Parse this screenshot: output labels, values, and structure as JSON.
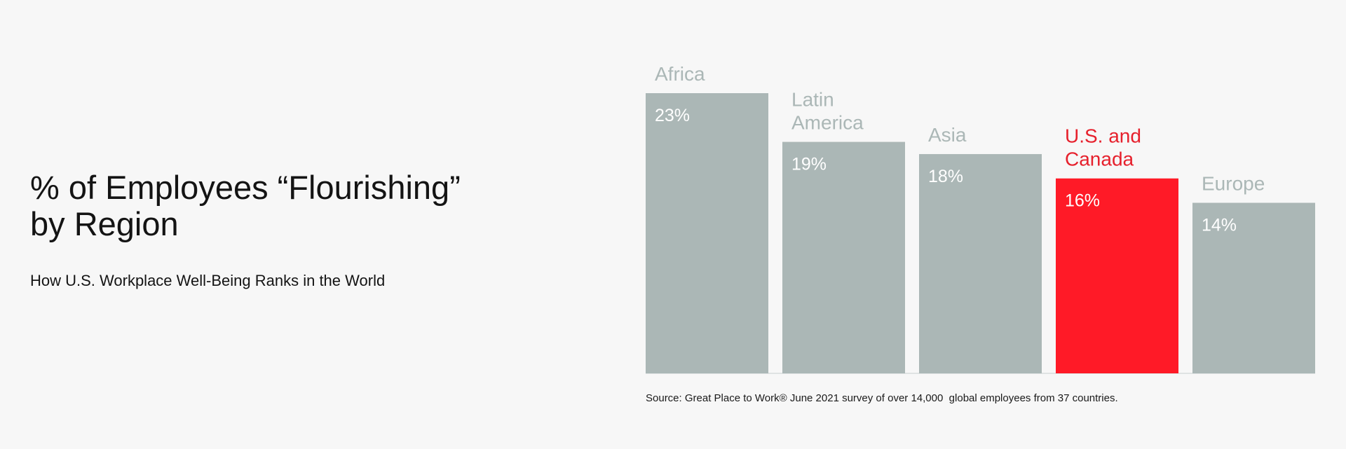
{
  "title": "% of Employees “Flourishing”\nby Region",
  "subtitle": "How U.S. Workplace Well-Being Ranks in the World",
  "source": "Source: Great Place to Work® June 2021 survey of over 14,000  global employees from 37 countries.",
  "colors": {
    "bar_default": "#abb7b6",
    "bar_highlight": "#ff1a27",
    "label_default": "#abb7b6",
    "label_highlight": "#e6202c",
    "value_text": "#ffffff",
    "baseline": "#dfe3e3"
  },
  "chart_data": {
    "type": "bar",
    "categories": [
      "Africa",
      "Latin\nAmerica",
      "Asia",
      "U.S. and\nCanada",
      "Europe"
    ],
    "values": [
      23,
      19,
      18,
      16,
      14
    ],
    "value_labels": [
      "23%",
      "19%",
      "18%",
      "16%",
      "14%"
    ],
    "highlight_index": 3,
    "ylim": [
      0,
      23
    ],
    "grid": false,
    "title": "% of Employees “Flourishing”\nby Region",
    "subtitle": "How U.S. Workplace Well-Being Ranks in the World"
  }
}
